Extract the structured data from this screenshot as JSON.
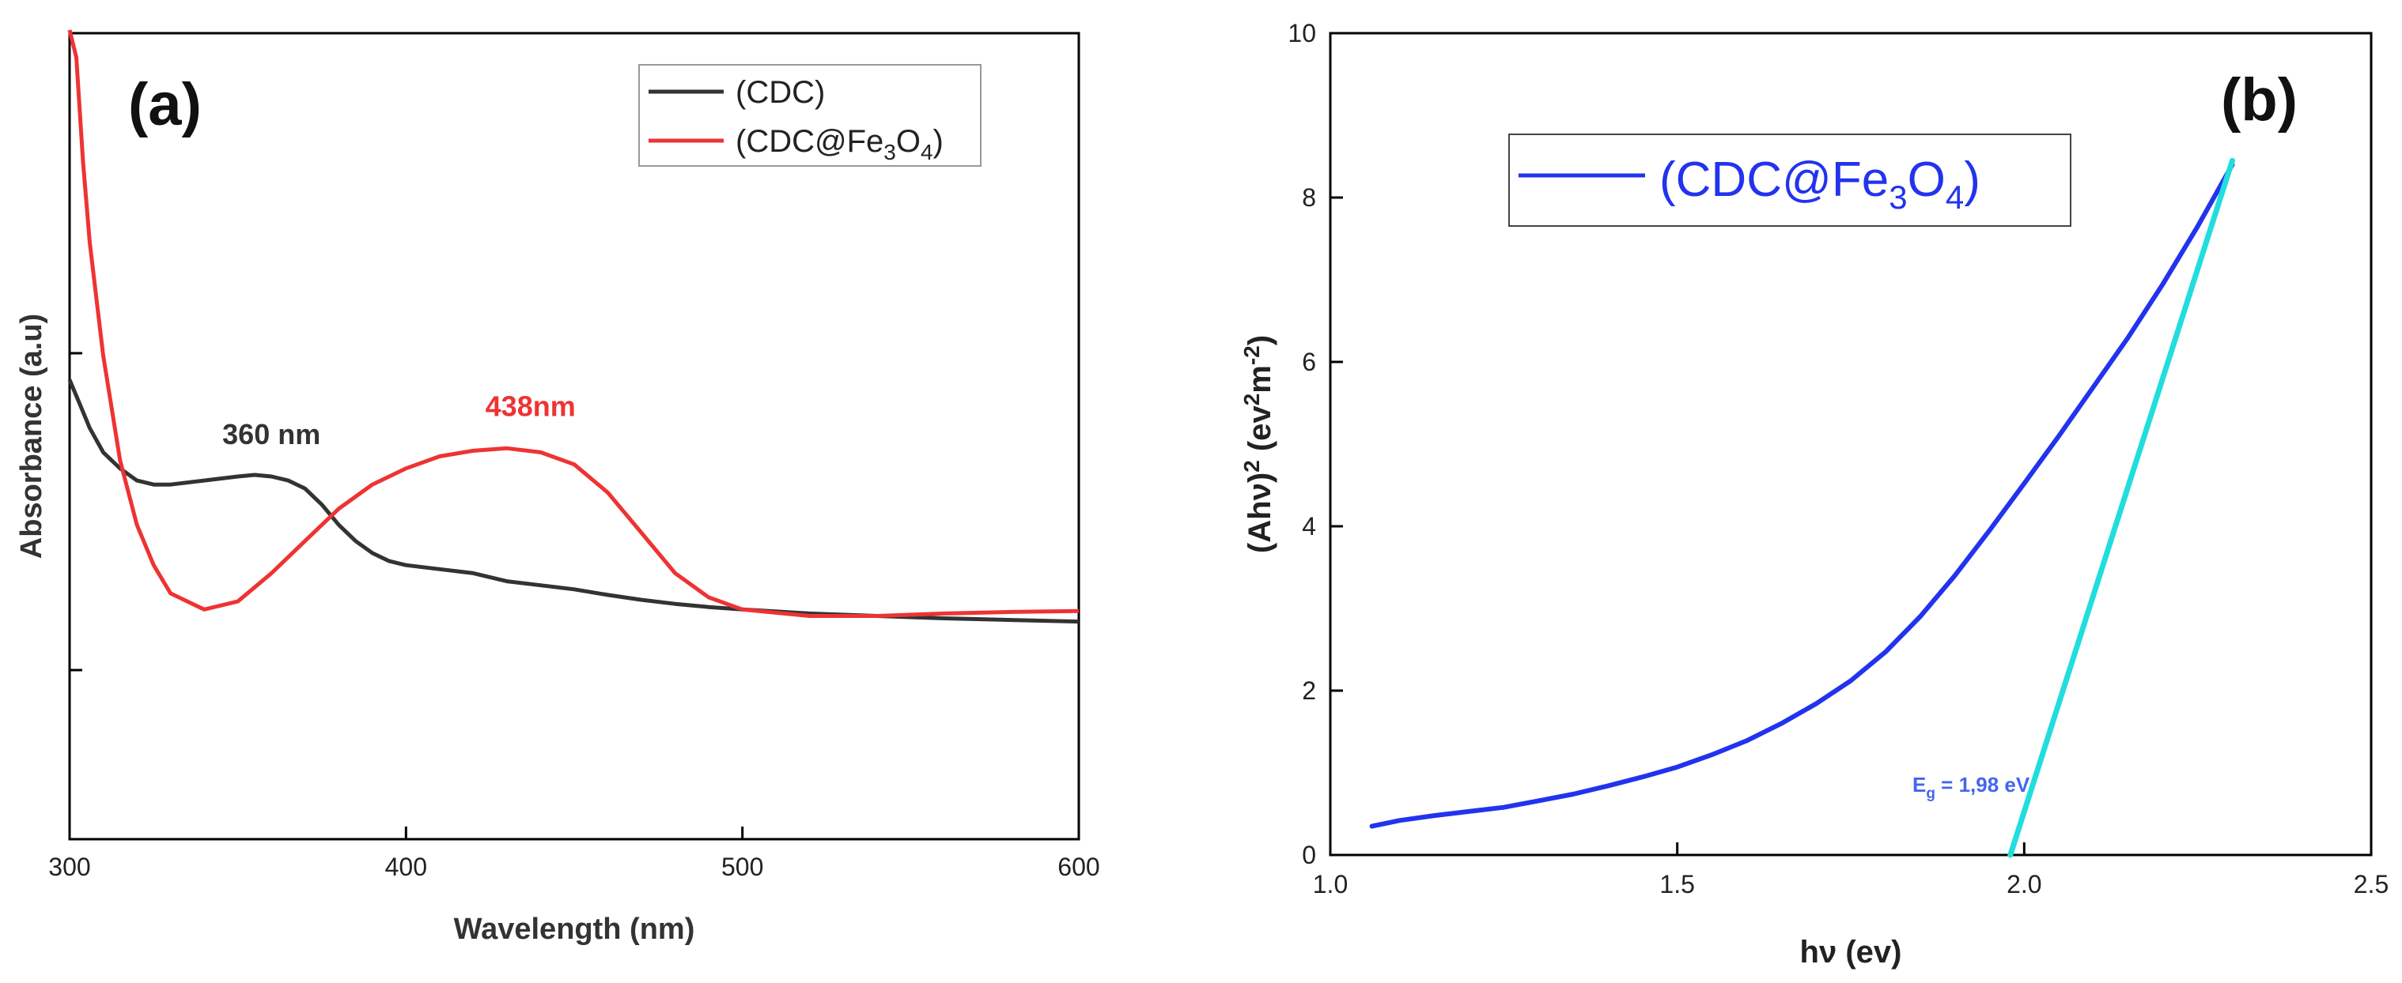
{
  "chart_data": [
    {
      "panel_label": "(a)",
      "type": "line",
      "xlabel": "Wavelength (nm)",
      "ylabel": "Absorbance (a.u)",
      "xlim": [
        300,
        600
      ],
      "ylim": [
        0,
        1
      ],
      "x_ticks": [
        "300",
        "400",
        "500",
        "600"
      ],
      "y_ticks_labeled": false,
      "legend": {
        "position": "top-right",
        "entries": [
          {
            "label": "(CDC)",
            "color": "#333333"
          },
          {
            "label": "(CDC@Fe3O4)",
            "color": "#ee3333",
            "formula": {
              "pre": "(CDC@Fe",
              "s1": "3",
              "mid": "O",
              "s2": "4",
              "post": ")"
            }
          }
        ]
      },
      "series": [
        {
          "name": "(CDC)",
          "color": "#333333",
          "x": [
            300,
            303,
            306,
            310,
            315,
            320,
            325,
            330,
            340,
            350,
            355,
            360,
            365,
            370,
            375,
            380,
            385,
            390,
            395,
            400,
            410,
            420,
            430,
            440,
            450,
            460,
            470,
            480,
            490,
            500,
            520,
            540,
            560,
            580,
            600
          ],
          "y": [
            0.57,
            0.54,
            0.51,
            0.48,
            0.46,
            0.445,
            0.44,
            0.44,
            0.445,
            0.45,
            0.452,
            0.45,
            0.445,
            0.435,
            0.415,
            0.39,
            0.37,
            0.355,
            0.345,
            0.34,
            0.335,
            0.33,
            0.32,
            0.315,
            0.31,
            0.303,
            0.297,
            0.292,
            0.288,
            0.285,
            0.28,
            0.277,
            0.274,
            0.272,
            0.27
          ]
        },
        {
          "name": "(CDC@Fe3O4)",
          "color": "#ee3333",
          "x": [
            300,
            302,
            304,
            306,
            310,
            315,
            320,
            325,
            330,
            340,
            350,
            360,
            370,
            380,
            390,
            400,
            410,
            420,
            430,
            440,
            450,
            460,
            470,
            480,
            490,
            500,
            520,
            540,
            560,
            580,
            600
          ],
          "y": [
            1.02,
            0.97,
            0.84,
            0.74,
            0.6,
            0.47,
            0.39,
            0.34,
            0.305,
            0.285,
            0.295,
            0.33,
            0.37,
            0.41,
            0.44,
            0.46,
            0.475,
            0.482,
            0.485,
            0.48,
            0.465,
            0.43,
            0.38,
            0.33,
            0.3,
            0.285,
            0.277,
            0.277,
            0.28,
            0.282,
            0.283
          ]
        }
      ],
      "annotations": [
        {
          "text": "360 nm",
          "x": 360,
          "y": 0.49,
          "color": "#333333"
        },
        {
          "text": "438nm",
          "x": 437,
          "y": 0.525,
          "color": "#ee3333"
        }
      ]
    },
    {
      "panel_label": "(b)",
      "type": "line",
      "xlabel": "hν (ev)",
      "ylabel": {
        "pre": "(Ahν)",
        "s1": "2",
        "mid": " (ev",
        "s2": "2",
        "mid2": "m",
        "s3": "-2",
        "post": ")"
      },
      "xlim": [
        1.0,
        2.5
      ],
      "ylim": [
        0,
        10
      ],
      "x_ticks": [
        "1.0",
        "1.5",
        "2.0",
        "2.5"
      ],
      "y_ticks": [
        "0",
        "2",
        "4",
        "6",
        "8",
        "10"
      ],
      "legend": {
        "position": "top-right",
        "entries": [
          {
            "label": "(CDC@Fe3O4)",
            "color": "#2233ee",
            "formula": {
              "pre": "(CDC@Fe",
              "s1": "3",
              "mid": "O",
              "s2": "4",
              "post": ")"
            }
          }
        ]
      },
      "series": [
        {
          "name": "(CDC@Fe3O4)",
          "color": "#2233ee",
          "x": [
            1.06,
            1.1,
            1.15,
            1.2,
            1.25,
            1.3,
            1.35,
            1.4,
            1.45,
            1.5,
            1.55,
            1.6,
            1.65,
            1.7,
            1.75,
            1.8,
            1.85,
            1.9,
            1.95,
            2.0,
            2.05,
            2.1,
            2.15,
            2.2,
            2.25,
            2.3
          ],
          "y": [
            0.35,
            0.42,
            0.48,
            0.53,
            0.58,
            0.66,
            0.74,
            0.84,
            0.95,
            1.07,
            1.22,
            1.39,
            1.6,
            1.84,
            2.12,
            2.47,
            2.9,
            3.4,
            3.95,
            4.52,
            5.1,
            5.7,
            6.3,
            6.95,
            7.65,
            8.4
          ]
        },
        {
          "name": "tangent",
          "color": "#22dddd",
          "x": [
            1.98,
            2.3
          ],
          "y": [
            0.0,
            8.45
          ]
        }
      ],
      "annotations": [
        {
          "text": "E",
          "sub": "g",
          "rest": " = 1,98 eV",
          "x": 2.0,
          "y": 0.85,
          "color": "#4466ee"
        }
      ]
    }
  ]
}
